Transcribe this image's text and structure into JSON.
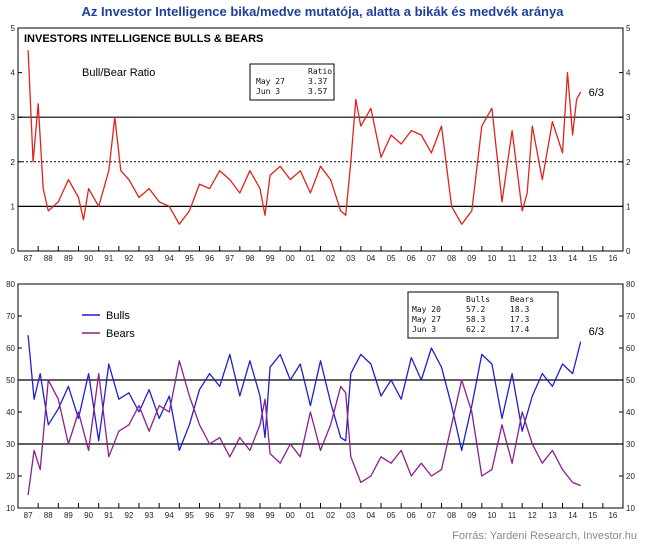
{
  "header": {
    "title": "Az Investor Intelligence bika/medve mutatója, alatta a bikák és medvék aránya"
  },
  "footer": {
    "source": "Forrás: Yardeni Research, Investor.hu"
  },
  "chart_data": [
    {
      "type": "line",
      "title": "INVESTORS INTELLIGENCE BULLS & BEARS",
      "subtitle": "Bull/Bear Ratio",
      "x_tick_labels": [
        "87",
        "88",
        "89",
        "90",
        "91",
        "92",
        "93",
        "94",
        "95",
        "96",
        "97",
        "98",
        "99",
        "00",
        "01",
        "02",
        "03",
        "04",
        "05",
        "06",
        "07",
        "08",
        "09",
        "10",
        "11",
        "12",
        "13",
        "14",
        "15",
        "16"
      ],
      "ylim": [
        0,
        5
      ],
      "yticks": [
        0,
        1,
        2,
        3,
        4,
        5
      ],
      "reference_lines": [
        {
          "y": 1,
          "style": "solid"
        },
        {
          "y": 2,
          "style": "dotted"
        },
        {
          "y": 3,
          "style": "solid"
        }
      ],
      "series": [
        {
          "color": "#e0231b",
          "x": [
            1987.0,
            1987.25,
            1987.5,
            1987.75,
            1988.0,
            1988.5,
            1989.0,
            1989.5,
            1989.75,
            1990.0,
            1990.5,
            1991.0,
            1991.3,
            1991.6,
            1992.0,
            1992.5,
            1993.0,
            1993.5,
            1994.0,
            1994.5,
            1995.0,
            1995.5,
            1996.0,
            1996.5,
            1997.0,
            1997.5,
            1998.0,
            1998.5,
            1998.75,
            1999.0,
            1999.5,
            2000.0,
            2000.5,
            2001.0,
            2001.5,
            2002.0,
            2002.5,
            2002.75,
            2003.0,
            2003.25,
            2003.5,
            2004.0,
            2004.5,
            2005.0,
            2005.5,
            2006.0,
            2006.5,
            2007.0,
            2007.5,
            2008.0,
            2008.5,
            2009.0,
            2009.5,
            2010.0,
            2010.5,
            2011.0,
            2011.5,
            2011.75,
            2012.0,
            2012.5,
            2013.0,
            2013.5,
            2013.75,
            2014.0,
            2014.2,
            2014.4
          ],
          "values": [
            4.5,
            2.0,
            3.3,
            1.4,
            0.9,
            1.1,
            1.6,
            1.2,
            0.7,
            1.4,
            1.0,
            1.8,
            3.0,
            1.8,
            1.6,
            1.2,
            1.4,
            1.1,
            1.0,
            0.6,
            0.9,
            1.5,
            1.4,
            1.8,
            1.6,
            1.3,
            1.8,
            1.4,
            0.8,
            1.7,
            1.9,
            1.6,
            1.8,
            1.3,
            1.9,
            1.6,
            0.9,
            0.8,
            2.0,
            3.4,
            2.8,
            3.2,
            2.1,
            2.6,
            2.4,
            2.7,
            2.6,
            2.2,
            2.8,
            1.0,
            0.6,
            0.9,
            2.8,
            3.2,
            1.1,
            2.7,
            0.9,
            1.3,
            2.8,
            1.6,
            2.9,
            2.2,
            4.0,
            2.6,
            3.4,
            3.57
          ]
        }
      ],
      "annotations": [
        {
          "text": "6/3",
          "x": 2014.4,
          "y": 3.57
        }
      ],
      "table": {
        "columns": [
          "",
          "Ratio"
        ],
        "rows": [
          {
            "date": "May 27",
            "values": [
              "3.37"
            ]
          },
          {
            "date": "Jun  3",
            "values": [
              "3.57"
            ]
          }
        ]
      },
      "grid": false
    },
    {
      "type": "line",
      "x_tick_labels": [
        "87",
        "88",
        "89",
        "90",
        "91",
        "92",
        "93",
        "94",
        "95",
        "96",
        "97",
        "98",
        "99",
        "00",
        "01",
        "02",
        "03",
        "04",
        "05",
        "06",
        "07",
        "08",
        "09",
        "10",
        "11",
        "12",
        "13",
        "14",
        "15",
        "16"
      ],
      "ylim": [
        10,
        80
      ],
      "yticks": [
        10,
        20,
        30,
        40,
        50,
        60,
        70,
        80
      ],
      "reference_lines": [
        {
          "y": 30,
          "style": "solid"
        },
        {
          "y": 50,
          "style": "solid"
        }
      ],
      "legend": {
        "position": "top-left",
        "entries": [
          "Bulls",
          "Bears"
        ]
      },
      "series": [
        {
          "name": "Bulls",
          "color": "#1f1fd0",
          "x": [
            1987.0,
            1987.3,
            1987.6,
            1988.0,
            1988.5,
            1989.0,
            1989.5,
            1990.0,
            1990.5,
            1991.0,
            1991.5,
            1992.0,
            1992.5,
            1993.0,
            1993.5,
            1994.0,
            1994.5,
            1995.0,
            1995.5,
            1996.0,
            1996.5,
            1997.0,
            1997.5,
            1998.0,
            1998.5,
            1998.75,
            1999.0,
            1999.5,
            2000.0,
            2000.5,
            2001.0,
            2001.5,
            2002.0,
            2002.5,
            2002.75,
            2003.0,
            2003.5,
            2004.0,
            2004.5,
            2005.0,
            2005.5,
            2006.0,
            2006.5,
            2007.0,
            2007.5,
            2008.0,
            2008.5,
            2009.0,
            2009.5,
            2010.0,
            2010.5,
            2011.0,
            2011.5,
            2012.0,
            2012.5,
            2013.0,
            2013.5,
            2014.0,
            2014.4
          ],
          "values": [
            64,
            44,
            52,
            36,
            41,
            48,
            38,
            52,
            31,
            55,
            44,
            46,
            40,
            47,
            38,
            45,
            28,
            36,
            47,
            52,
            48,
            58,
            45,
            56,
            45,
            32,
            54,
            58,
            50,
            55,
            42,
            56,
            43,
            32,
            31,
            52,
            58,
            55,
            45,
            50,
            44,
            57,
            50,
            60,
            54,
            42,
            28,
            42,
            58,
            55,
            38,
            52,
            34,
            45,
            52,
            48,
            55,
            52,
            62
          ]
        },
        {
          "name": "Bears",
          "color": "#8b1f8b",
          "x": [
            1987.0,
            1987.3,
            1987.6,
            1988.0,
            1988.5,
            1989.0,
            1989.5,
            1990.0,
            1990.5,
            1991.0,
            1991.5,
            1992.0,
            1992.5,
            1993.0,
            1993.5,
            1994.0,
            1994.5,
            1995.0,
            1995.5,
            1996.0,
            1996.5,
            1997.0,
            1997.5,
            1998.0,
            1998.5,
            1998.75,
            1999.0,
            1999.5,
            2000.0,
            2000.5,
            2001.0,
            2001.5,
            2002.0,
            2002.5,
            2002.75,
            2003.0,
            2003.5,
            2004.0,
            2004.5,
            2005.0,
            2005.5,
            2006.0,
            2006.5,
            2007.0,
            2007.5,
            2008.0,
            2008.5,
            2009.0,
            2009.5,
            2010.0,
            2010.5,
            2011.0,
            2011.5,
            2012.0,
            2012.5,
            2013.0,
            2013.5,
            2014.0,
            2014.4
          ],
          "values": [
            14,
            28,
            22,
            50,
            44,
            30,
            40,
            28,
            52,
            26,
            34,
            36,
            42,
            34,
            42,
            40,
            56,
            45,
            36,
            30,
            32,
            26,
            32,
            28,
            36,
            44,
            27,
            24,
            30,
            26,
            40,
            28,
            36,
            48,
            46,
            26,
            18,
            20,
            26,
            24,
            28,
            20,
            24,
            20,
            22,
            36,
            50,
            40,
            20,
            22,
            36,
            24,
            40,
            30,
            24,
            28,
            22,
            18,
            17
          ]
        }
      ],
      "annotations": [
        {
          "text": "6/3",
          "x": 2014.4,
          "y": 62.2
        }
      ],
      "table": {
        "columns": [
          "",
          "Bulls",
          "Bears"
        ],
        "rows": [
          {
            "date": "May 20",
            "values": [
              "57.2",
              "18.3"
            ]
          },
          {
            "date": "May 27",
            "values": [
              "58.3",
              "17.3"
            ]
          },
          {
            "date": "Jun  3",
            "values": [
              "62.2",
              "17.4"
            ]
          }
        ]
      },
      "grid": false
    }
  ]
}
